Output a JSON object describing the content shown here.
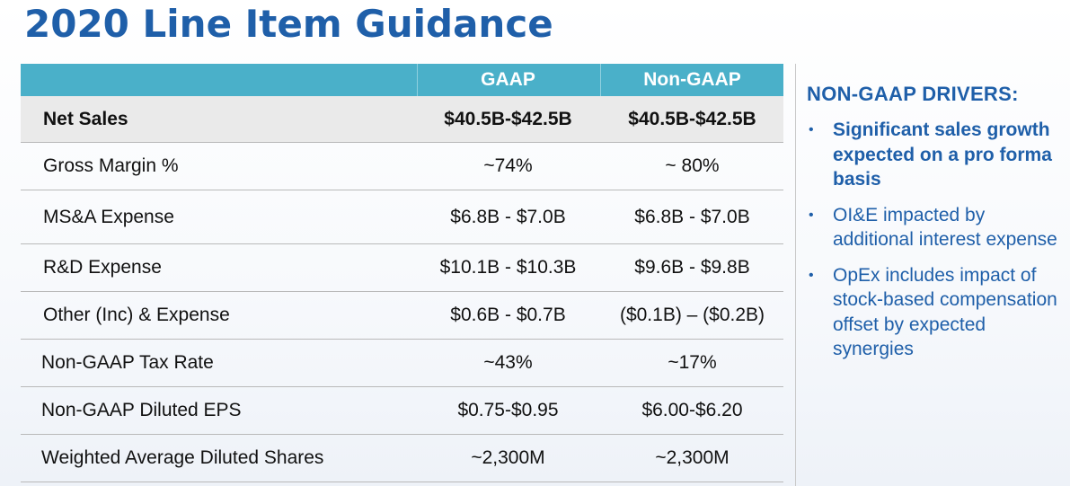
{
  "title": "2020 Line Item Guidance",
  "table": {
    "columns": [
      "",
      "GAAP",
      "Non-GAAP"
    ],
    "rows": [
      {
        "label": "Net Sales",
        "gaap": "$40.5B-$42.5B",
        "non_gaap": "$40.5B-$42.5B"
      },
      {
        "label": "Gross Margin %",
        "gaap": "~74%",
        "non_gaap": "~ 80%"
      },
      {
        "label": "MS&A Expense",
        "gaap": "$6.8B - $7.0B",
        "non_gaap": "$6.8B - $7.0B"
      },
      {
        "label": "R&D Expense",
        "gaap": "$10.1B - $10.3B",
        "non_gaap": "$9.6B - $9.8B"
      },
      {
        "label": "Other (Inc) & Expense",
        "gaap": "$0.6B - $0.7B",
        "non_gaap": "($0.1B) – ($0.2B)"
      },
      {
        "label": "Non-GAAP Tax Rate",
        "gaap": "~43%",
        "non_gaap": "~17%"
      },
      {
        "label": "Non-GAAP Diluted EPS",
        "gaap": "$0.75-$0.95",
        "non_gaap": "$6.00-$6.20"
      },
      {
        "label": "Weighted Average Diluted Shares",
        "gaap": "~2,300M",
        "non_gaap": "~2,300M"
      }
    ]
  },
  "drivers": {
    "title": "NON-GAAP DRIVERS:",
    "bullet_glyph": "•",
    "items": [
      {
        "text": "Significant sales growth expected on a pro forma basis",
        "bold": true
      },
      {
        "text": "OI&E impacted by additional interest expense",
        "bold": false
      },
      {
        "text": "OpEx includes impact of stock-based compensation offset by expected synergies",
        "bold": false
      }
    ]
  },
  "colors": {
    "title": "#1f5fa9",
    "header_bg": "#4ab0c9",
    "highlight_row_bg": "#eaeaea",
    "drivers_text": "#1f5fa9"
  }
}
